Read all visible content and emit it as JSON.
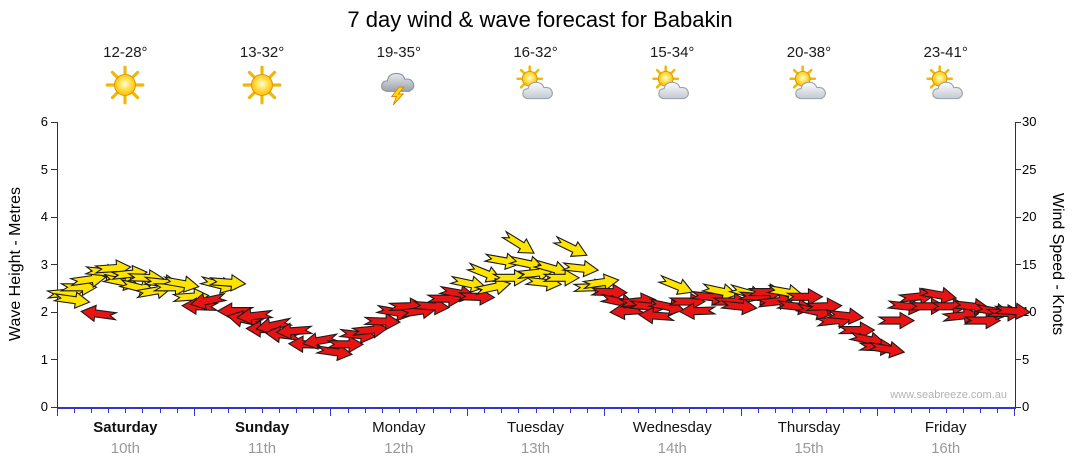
{
  "title": "7 day wind & wave forecast for Babakin",
  "watermark": "www.seabreeze.com.au",
  "days": [
    {
      "name": "Saturday",
      "date": "10th",
      "temp": "12-28°",
      "icon": "sun",
      "bold": true
    },
    {
      "name": "Sunday",
      "date": "11th",
      "temp": "13-32°",
      "icon": "sun",
      "bold": true
    },
    {
      "name": "Monday",
      "date": "12th",
      "temp": "19-35°",
      "icon": "storm",
      "bold": false
    },
    {
      "name": "Tuesday",
      "date": "13th",
      "temp": "16-32°",
      "icon": "sun-cloud",
      "bold": false
    },
    {
      "name": "Wednesday",
      "date": "14th",
      "temp": "15-34°",
      "icon": "sun-cloud",
      "bold": false
    },
    {
      "name": "Thursday",
      "date": "15th",
      "temp": "20-38°",
      "icon": "sun-cloud",
      "bold": false
    },
    {
      "name": "Friday",
      "date": "16th",
      "temp": "23-41°",
      "icon": "sun-cloud",
      "bold": false
    }
  ],
  "left_axis": {
    "title": "Wave Height - Metres",
    "ticks": [
      0,
      1,
      2,
      3,
      4,
      5,
      6
    ],
    "range": [
      0,
      6
    ]
  },
  "right_axis": {
    "title": "Wind Speed - Knots",
    "ticks": [
      0,
      5,
      10,
      15,
      20,
      25,
      30
    ],
    "range": [
      0,
      30
    ]
  },
  "chart_data": {
    "type": "scatter",
    "title": "7 day wind & wave forecast for Babakin",
    "x": {
      "range_days": [
        0,
        7
      ],
      "categories": [
        "Saturday 10th",
        "Sunday 11th",
        "Monday 12th",
        "Tuesday 13th",
        "Wednesday 14th",
        "Thursday 15th",
        "Friday 16th"
      ]
    },
    "y_left_axis": {
      "label": "Wave Height - Metres",
      "range": [
        0,
        6
      ]
    },
    "y_right_axis": {
      "label": "Wind Speed - Knots",
      "range": [
        0,
        30
      ]
    },
    "legend": "none",
    "grid": false,
    "point_format": [
      "day_fraction",
      "wind_speed_knots",
      "arrow_color",
      "wind_direction_deg"
    ],
    "colors": {
      "yellow": "#ffe400",
      "red": "#e81414"
    },
    "series": [
      {
        "name": "Wind speed (knots, direction arrows)",
        "points": [
          [
            0.05,
            12.0,
            "yellow",
            -5
          ],
          [
            0.1,
            11.3,
            "yellow",
            8
          ],
          [
            0.15,
            12.6,
            "yellow",
            0
          ],
          [
            0.22,
            13.4,
            "yellow",
            -8
          ],
          [
            0.3,
            9.8,
            "red",
            188
          ],
          [
            0.33,
            14.2,
            "yellow",
            6
          ],
          [
            0.4,
            14.6,
            "yellow",
            -4
          ],
          [
            0.46,
            13.2,
            "yellow",
            12
          ],
          [
            0.52,
            14.0,
            "yellow",
            -6
          ],
          [
            0.58,
            12.6,
            "yellow",
            14
          ],
          [
            0.64,
            13.6,
            "yellow",
            2
          ],
          [
            0.7,
            12.2,
            "yellow",
            -10
          ],
          [
            0.76,
            13.1,
            "yellow",
            6
          ],
          [
            0.83,
            12.6,
            "yellow",
            0
          ],
          [
            0.9,
            13.0,
            "yellow",
            10
          ],
          [
            0.97,
            11.6,
            "yellow",
            -4
          ],
          [
            1.04,
            10.6,
            "red",
            182
          ],
          [
            1.1,
            11.2,
            "red",
            168
          ],
          [
            1.17,
            12.9,
            "yellow",
            14
          ],
          [
            1.24,
            13.1,
            "yellow",
            4
          ],
          [
            1.3,
            10.1,
            "red",
            180
          ],
          [
            1.37,
            9.2,
            "red",
            192
          ],
          [
            1.44,
            9.6,
            "red",
            174
          ],
          [
            1.51,
            8.2,
            "red",
            182
          ],
          [
            1.58,
            8.6,
            "red",
            168
          ],
          [
            1.65,
            7.6,
            "red",
            186
          ],
          [
            1.73,
            8.0,
            "red",
            176
          ],
          [
            1.82,
            6.6,
            "red",
            182
          ],
          [
            1.92,
            7.0,
            "red",
            170
          ],
          [
            2.02,
            5.8,
            "red",
            8
          ],
          [
            2.1,
            6.6,
            "red",
            0
          ],
          [
            2.19,
            7.6,
            "red",
            6
          ],
          [
            2.28,
            8.1,
            "red",
            -6
          ],
          [
            2.37,
            9.0,
            "red",
            2
          ],
          [
            2.46,
            10.0,
            "red",
            10
          ],
          [
            2.55,
            10.6,
            "red",
            -2
          ],
          [
            2.64,
            10.1,
            "red",
            -8
          ],
          [
            2.73,
            10.6,
            "red",
            4
          ],
          [
            2.83,
            11.4,
            "red",
            0
          ],
          [
            2.92,
            12.0,
            "red",
            10
          ],
          [
            3.0,
            13.0,
            "yellow",
            12
          ],
          [
            3.06,
            11.6,
            "red",
            2
          ],
          [
            3.12,
            14.1,
            "yellow",
            22
          ],
          [
            3.18,
            12.6,
            "yellow",
            -12
          ],
          [
            3.25,
            15.4,
            "yellow",
            10
          ],
          [
            3.31,
            13.6,
            "yellow",
            0
          ],
          [
            3.37,
            17.2,
            "yellow",
            32
          ],
          [
            3.43,
            15.1,
            "yellow",
            12
          ],
          [
            3.49,
            14.1,
            "yellow",
            -6
          ],
          [
            3.55,
            13.1,
            "yellow",
            6
          ],
          [
            3.61,
            14.6,
            "yellow",
            16
          ],
          [
            3.68,
            13.6,
            "yellow",
            0
          ],
          [
            3.75,
            16.8,
            "yellow",
            26
          ],
          [
            3.82,
            14.6,
            "yellow",
            6
          ],
          [
            3.9,
            12.6,
            "yellow",
            -2
          ],
          [
            3.97,
            13.1,
            "yellow",
            -8
          ],
          [
            4.03,
            12.1,
            "red",
            2
          ],
          [
            4.1,
            11.1,
            "red",
            12
          ],
          [
            4.17,
            10.1,
            "red",
            176
          ],
          [
            4.24,
            11.1,
            "red",
            -6
          ],
          [
            4.31,
            10.6,
            "red",
            6
          ],
          [
            4.38,
            9.6,
            "red",
            184
          ],
          [
            4.45,
            10.6,
            "red",
            12
          ],
          [
            4.52,
            12.8,
            "yellow",
            22
          ],
          [
            4.6,
            11.1,
            "red",
            0
          ],
          [
            4.68,
            10.1,
            "red",
            178
          ],
          [
            4.76,
            11.6,
            "red",
            6
          ],
          [
            4.84,
            12.2,
            "yellow",
            12
          ],
          [
            4.92,
            11.1,
            "red",
            0
          ],
          [
            4.98,
            10.6,
            "red",
            6
          ],
          [
            5.04,
            12.0,
            "yellow",
            16
          ],
          [
            5.11,
            11.6,
            "red",
            4
          ],
          [
            5.18,
            12.1,
            "red",
            0
          ],
          [
            5.25,
            11.1,
            "red",
            -6
          ],
          [
            5.32,
            12.1,
            "yellow",
            10
          ],
          [
            5.39,
            10.6,
            "red",
            6
          ],
          [
            5.46,
            11.6,
            "red",
            0
          ],
          [
            5.53,
            10.1,
            "red",
            12
          ],
          [
            5.6,
            10.6,
            "red",
            -2
          ],
          [
            5.68,
            9.1,
            "red",
            -6
          ],
          [
            5.76,
            9.6,
            "red",
            6
          ],
          [
            5.84,
            8.1,
            "red",
            0
          ],
          [
            5.92,
            7.1,
            "red",
            12
          ],
          [
            5.99,
            6.3,
            "red",
            2
          ],
          [
            6.06,
            6.1,
            "red",
            10
          ],
          [
            6.13,
            9.1,
            "red",
            0
          ],
          [
            6.2,
            10.6,
            "red",
            6
          ],
          [
            6.28,
            11.6,
            "red",
            -6
          ],
          [
            6.36,
            10.6,
            "red",
            0
          ],
          [
            6.44,
            11.8,
            "red",
            10
          ],
          [
            6.52,
            10.6,
            "red",
            0
          ],
          [
            6.6,
            9.6,
            "red",
            -6
          ],
          [
            6.68,
            10.6,
            "red",
            6
          ],
          [
            6.76,
            9.1,
            "red",
            0
          ],
          [
            6.84,
            10.1,
            "red",
            10
          ],
          [
            6.92,
            9.9,
            "red",
            0
          ],
          [
            6.98,
            10.1,
            "red",
            4
          ]
        ]
      }
    ]
  }
}
